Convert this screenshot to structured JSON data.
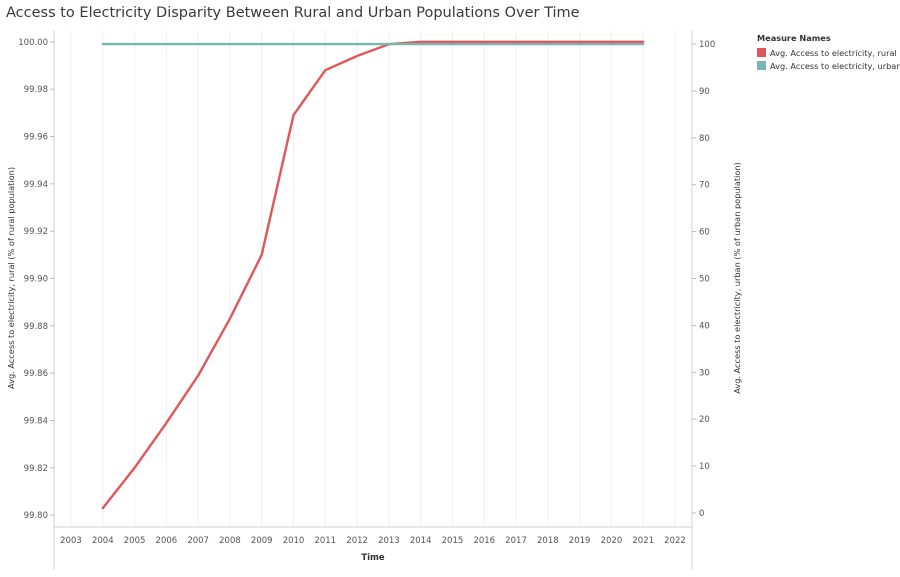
{
  "title": "Access to Electricity Disparity Between Rural and Urban Populations Over Time",
  "legend": {
    "title": "Measure Names",
    "items": [
      {
        "label": "Avg. Access to electricity, rural",
        "color": "#e15759"
      },
      {
        "label": "Avg. Access to electricity, urban",
        "color": "#76b7b2"
      }
    ]
  },
  "chart_data": {
    "type": "line",
    "xlabel": "Time",
    "ylabel_left": "Avg. Access to electricity, rural (% of rural population)",
    "ylabel_right": "Avg. Access to electricity, urban (% of urban population)",
    "x_ticks": [
      "2003",
      "2004",
      "2005",
      "2006",
      "2007",
      "2008",
      "2009",
      "2010",
      "2011",
      "2012",
      "2013",
      "2014",
      "2015",
      "2016",
      "2017",
      "2018",
      "2019",
      "2020",
      "2021",
      "2022"
    ],
    "ylim_left": [
      99.795,
      100.005
    ],
    "yticks_left": [
      "99.80",
      "99.82",
      "99.84",
      "99.86",
      "99.88",
      "99.90",
      "99.92",
      "99.94",
      "99.96",
      "99.98",
      "100.00"
    ],
    "ylim_right": [
      -3,
      103
    ],
    "yticks_right": [
      "0",
      "10",
      "20",
      "30",
      "40",
      "50",
      "60",
      "70",
      "80",
      "90",
      "100"
    ],
    "grid": true,
    "series": [
      {
        "name": "Avg. Access to electricity, rural",
        "axis": "left",
        "color": "#e15759",
        "x": [
          2004,
          2005,
          2006,
          2007,
          2008,
          2009,
          2010,
          2011,
          2012,
          2013,
          2014,
          2015,
          2016,
          2017,
          2018,
          2019,
          2020,
          2021
        ],
        "values": [
          99.803,
          99.82,
          99.839,
          99.859,
          99.883,
          99.91,
          99.969,
          99.988,
          99.994,
          99.999,
          100.0,
          100.0,
          100.0,
          100.0,
          100.0,
          100.0,
          100.0,
          100.0
        ]
      },
      {
        "name": "Avg. Access to electricity, urban",
        "axis": "right",
        "color": "#76b7b2",
        "x": [
          2004,
          2005,
          2006,
          2007,
          2008,
          2009,
          2010,
          2011,
          2012,
          2013,
          2014,
          2015,
          2016,
          2017,
          2018,
          2019,
          2020,
          2021
        ],
        "values": [
          100,
          100,
          100,
          100,
          100,
          100,
          100,
          100,
          100,
          100,
          100,
          100,
          100,
          100,
          100,
          100,
          100,
          100
        ]
      }
    ]
  }
}
